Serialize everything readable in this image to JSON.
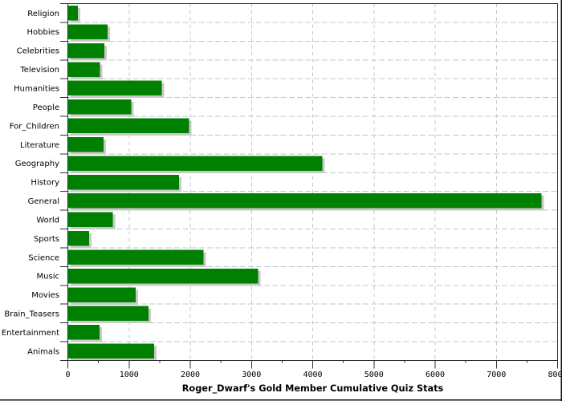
{
  "chart_data": {
    "type": "bar",
    "orientation": "horizontal",
    "title": "Roger_Dwarf's Gold Member Cumulative Quiz Stats",
    "categories": [
      "Religion",
      "Hobbies",
      "Celebrities",
      "Television",
      "Humanities",
      "People",
      "For_Children",
      "Literature",
      "Geography",
      "History",
      "General",
      "World",
      "Sports",
      "Science",
      "Music",
      "Movies",
      "Brain_Teasers",
      "Entertainment",
      "Animals"
    ],
    "values": [
      155,
      640,
      590,
      520,
      1525,
      1030,
      1975,
      580,
      4150,
      1810,
      7730,
      725,
      340,
      2210,
      3100,
      1100,
      1310,
      510,
      1405
    ],
    "xlabel": "",
    "ylabel": "",
    "xlim": [
      0,
      8000
    ],
    "x_major_tick_step": 1000,
    "x_minor_tick_step": 500,
    "x_tick_labels": [
      "0",
      "1000",
      "2000",
      "3000",
      "4000",
      "5000",
      "6000",
      "7000",
      "8000"
    ],
    "grid": "dashed",
    "legend": "none",
    "colors": {
      "bar": "#008000",
      "bar_shadow": "#c9c9c9",
      "grid": "#b9c8d1",
      "axis": "#2e2e2e",
      "text": "#000000",
      "frame": "#111111",
      "background": "#ffffff"
    }
  }
}
